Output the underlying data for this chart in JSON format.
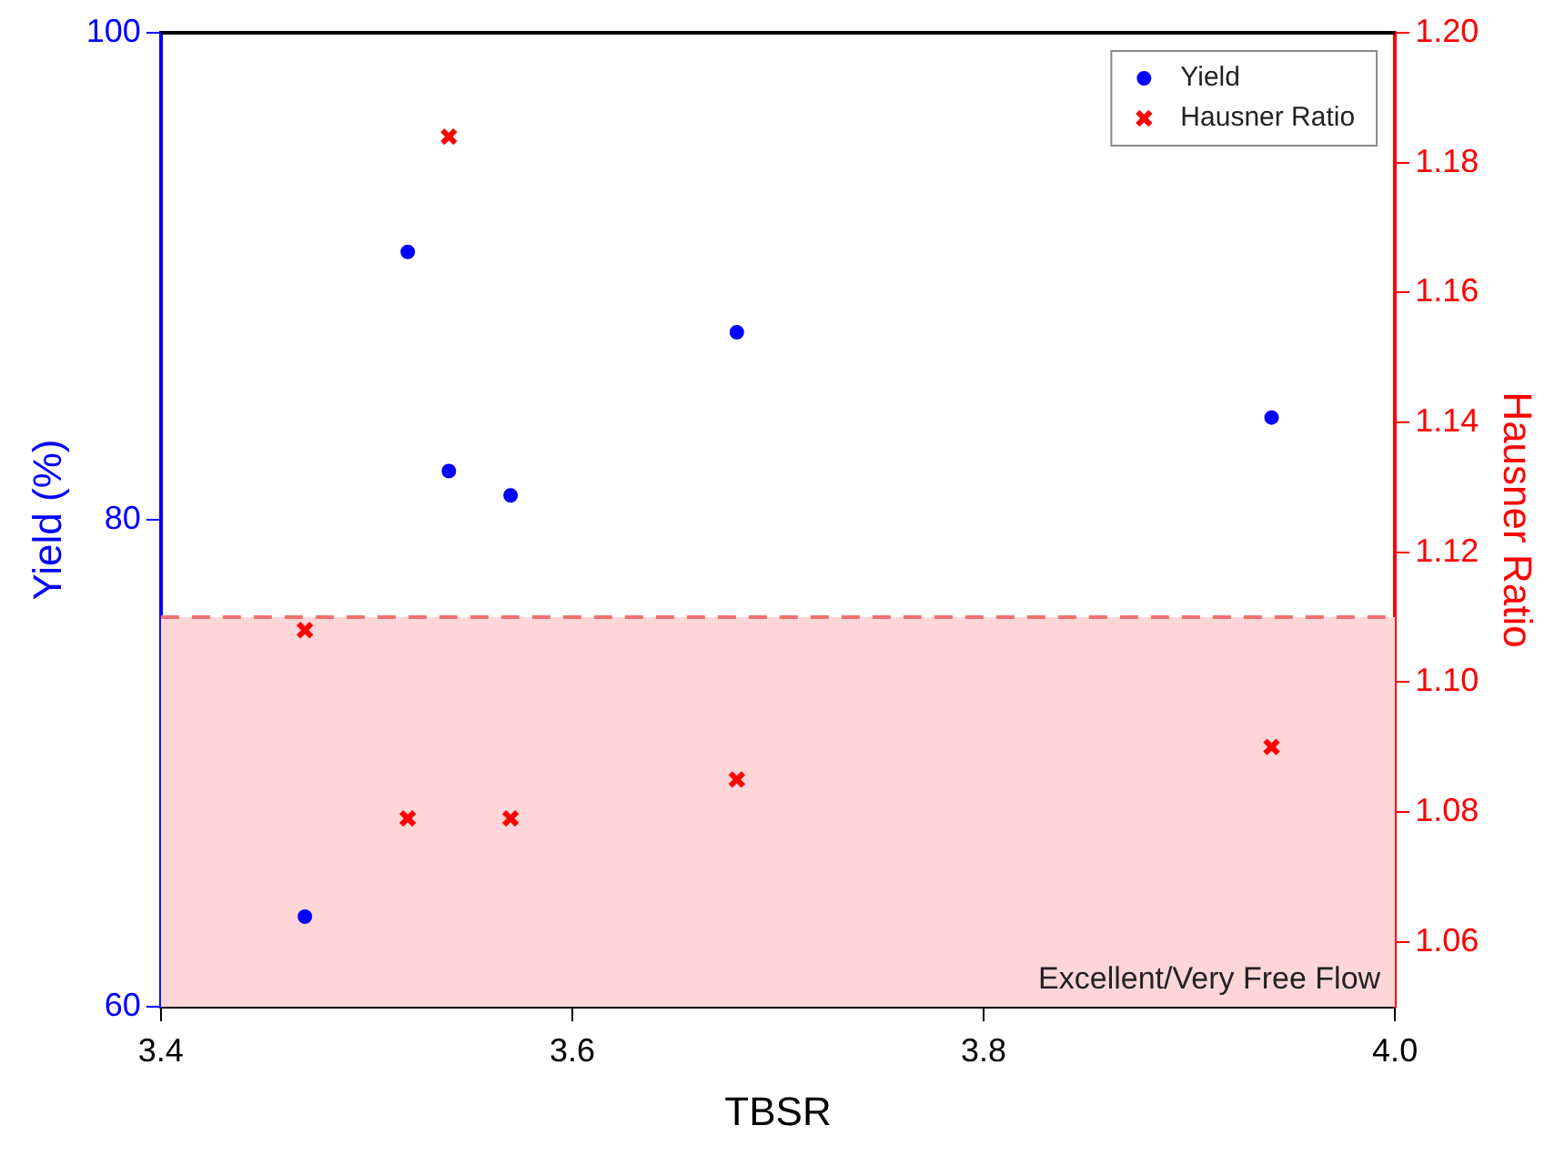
{
  "chart_data": {
    "type": "scatter",
    "xlabel": "TBSR",
    "ylabel": "Yield (%)",
    "y2label": "Hausner Ratio",
    "xlim": [
      3.4,
      4.0
    ],
    "xticks": [
      3.4,
      3.6,
      3.8,
      {
        "value": 4,
        "label": "4.0"
      }
    ],
    "ylim": [
      60,
      100
    ],
    "yticks": [
      60,
      80,
      100
    ],
    "y2lim": [
      1.05,
      1.2
    ],
    "y2ticks": [
      1.06,
      1.08,
      {
        "value": 1.1,
        "label": "1.10"
      },
      1.12,
      1.14,
      1.16,
      1.18,
      {
        "value": 1.2,
        "label": "1.20"
      }
    ],
    "series": [
      {
        "name": "Yield",
        "color": "#0000ff",
        "marker": "circle",
        "x": [
          3.47,
          3.52,
          3.54,
          3.57,
          3.68,
          3.94
        ],
        "values": [
          63.7,
          91.0,
          82.0,
          81.0,
          87.7,
          84.2
        ]
      },
      {
        "name": "Hausner Ratio",
        "color": "#ff0000",
        "marker": "cross",
        "axis": "y2",
        "x": [
          3.47,
          3.52,
          3.54,
          3.57,
          3.68,
          3.94
        ],
        "values": [
          1.108,
          1.079,
          1.184,
          1.079,
          1.085,
          1.09
        ]
      }
    ],
    "bands": [
      {
        "axis": "y2",
        "from": 1.05,
        "to": 1.11,
        "label": "Excellent/Very Free Flow",
        "color": "#ffd6d8"
      }
    ],
    "ref_lines": [
      {
        "axis": "y2",
        "value": 1.11,
        "color": "#f07070",
        "line_style": "dashed"
      }
    ],
    "legend": "top right",
    "grid": false
  }
}
